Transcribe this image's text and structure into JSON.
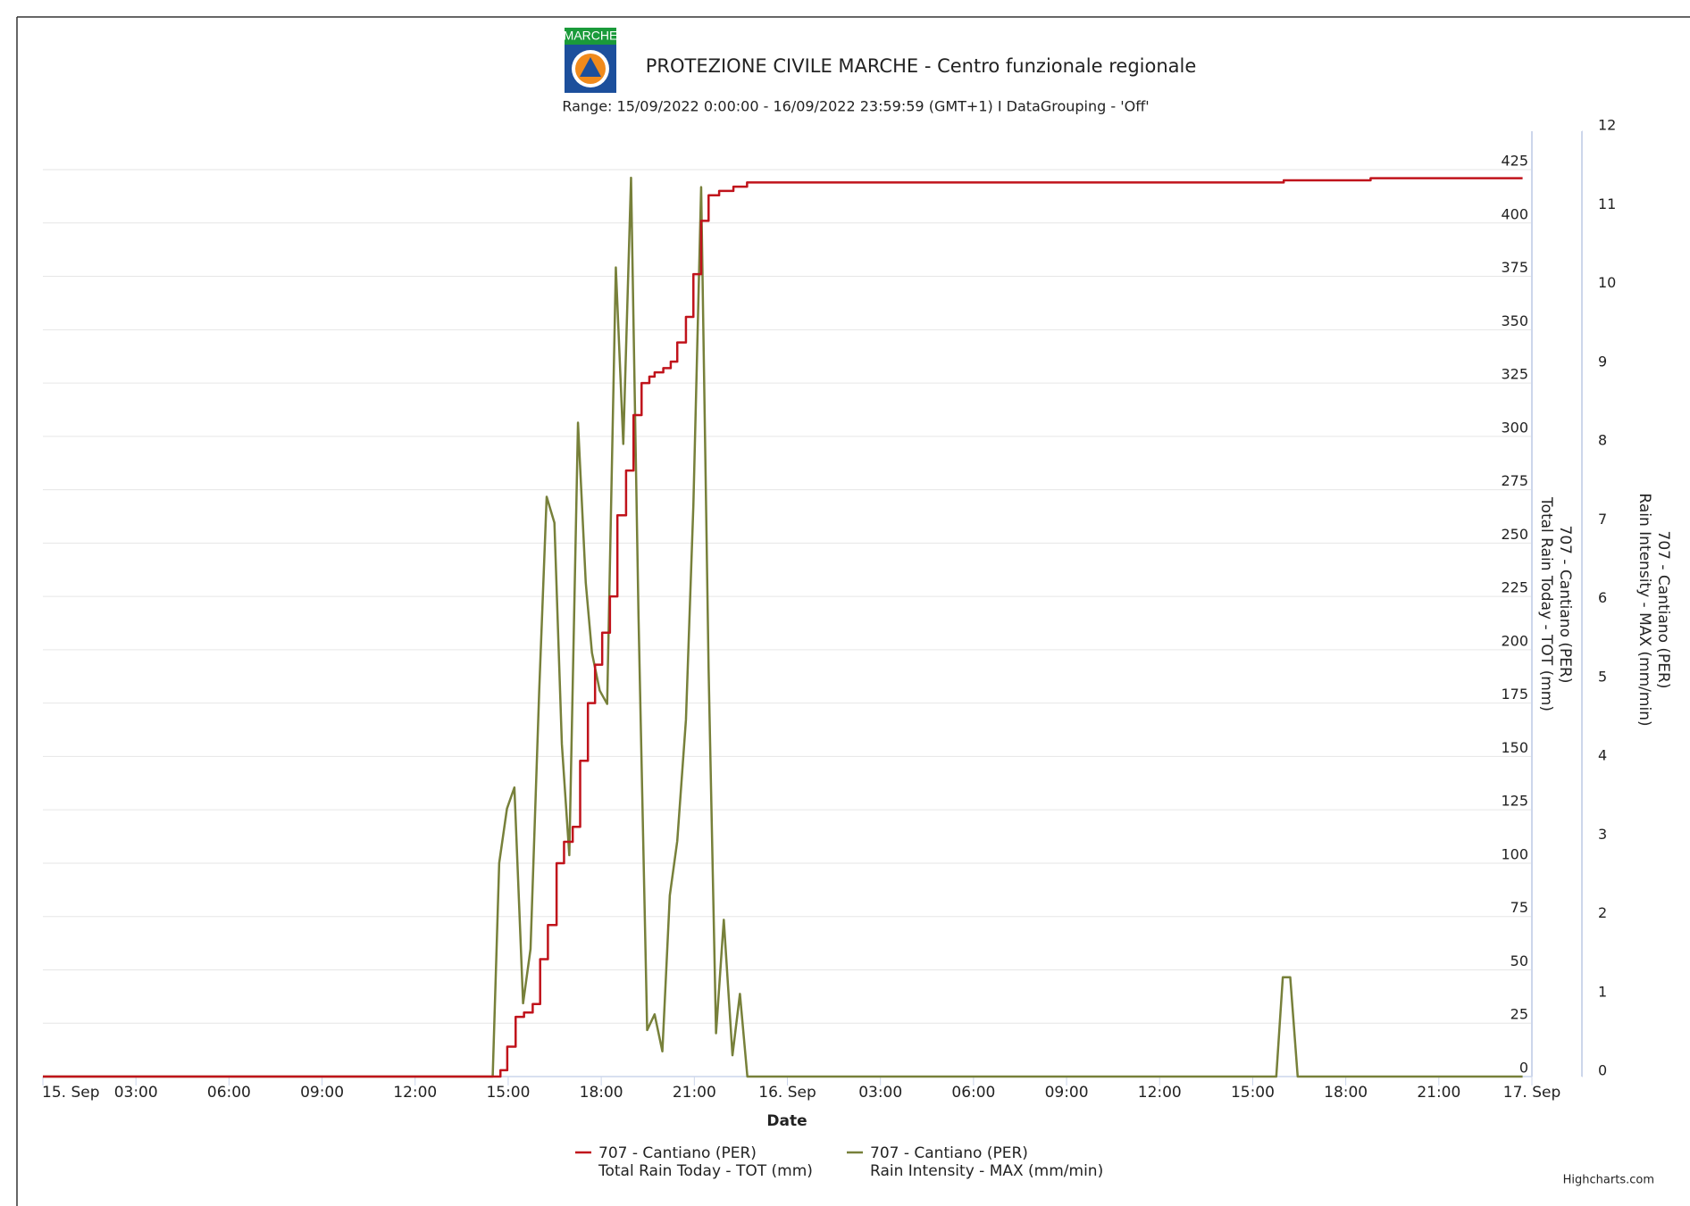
{
  "logo_text": "MARCHE",
  "chart_data": {
    "type": "line",
    "title": "PROTEZIONE CIVILE MARCHE - Centro funzionale regionale",
    "subtitle": "Range: 15/09/2022  0:00:00 - 16/09/2022  23:59:59  (GMT+1)  I  DataGrouping  - 'Off'",
    "xlabel": "Date",
    "ylabel": [
      "707 - Cantiano (PER)",
      "Total Rain Today - TOT (mm)"
    ],
    "y2label": [
      "707 - Cantiano (PER)",
      "Rain Intensity - MAX (mm/min)"
    ],
    "credits": "Highcharts.com",
    "xlim": [
      0,
      48
    ],
    "xticks": [
      {
        "value": 0,
        "label": "15. Sep"
      },
      {
        "value": 3,
        "label": "03:00"
      },
      {
        "value": 6,
        "label": "06:00"
      },
      {
        "value": 9,
        "label": "09:00"
      },
      {
        "value": 12,
        "label": "12:00"
      },
      {
        "value": 15,
        "label": "15:00"
      },
      {
        "value": 18,
        "label": "18:00"
      },
      {
        "value": 21,
        "label": "21:00"
      },
      {
        "value": 24,
        "label": "16. Sep"
      },
      {
        "value": 27,
        "label": "03:00"
      },
      {
        "value": 30,
        "label": "06:00"
      },
      {
        "value": 33,
        "label": "09:00"
      },
      {
        "value": 36,
        "label": "12:00"
      },
      {
        "value": 39,
        "label": "15:00"
      },
      {
        "value": 42,
        "label": "18:00"
      },
      {
        "value": 45,
        "label": "21:00"
      },
      {
        "value": 48,
        "label": "17. Sep"
      }
    ],
    "ylim": [
      0,
      443
    ],
    "yticks": [
      0,
      25,
      50,
      75,
      100,
      125,
      150,
      175,
      200,
      225,
      250,
      275,
      300,
      325,
      350,
      375,
      400,
      425
    ],
    "y2lim": [
      0,
      12
    ],
    "y2ticks": [
      0,
      1,
      2,
      3,
      4,
      5,
      6,
      7,
      8,
      9,
      10,
      11,
      12
    ],
    "grid": true,
    "series": [
      {
        "name": [
          "707 - Cantiano (PER)",
          "Total Rain Today - TOT (mm)"
        ],
        "color": "#c0131b",
        "step": true,
        "x": [
          0,
          14.6,
          14.75,
          14.97,
          15.24,
          15.51,
          15.79,
          16.03,
          16.28,
          16.56,
          16.8,
          17.08,
          17.32,
          17.57,
          17.8,
          18.03,
          18.28,
          18.52,
          18.8,
          19.04,
          19.3,
          19.55,
          19.72,
          20.0,
          20.24,
          20.45,
          20.73,
          20.97,
          21.22,
          21.46,
          21.8,
          22.26,
          22.7,
          40.0,
          42.8,
          47.7
        ],
        "values": [
          0,
          0,
          3,
          14,
          28,
          30,
          34,
          55,
          71,
          100,
          110,
          117,
          148,
          175,
          193,
          208,
          225,
          263,
          284,
          310,
          325,
          328,
          330,
          332,
          335,
          344,
          356,
          376,
          401,
          413,
          415,
          417,
          419,
          420,
          421,
          421
        ]
      },
      {
        "name": [
          "707 - Cantiano (PER)",
          "Rain Intensity - MAX (mm/min)"
        ],
        "color": "#77803a",
        "axis": "y2",
        "step": false,
        "x": [
          0,
          14.5,
          14.71,
          14.96,
          15.2,
          15.48,
          15.72,
          16.0,
          16.24,
          16.49,
          16.73,
          16.97,
          17.25,
          17.5,
          17.7,
          17.95,
          18.19,
          18.47,
          18.71,
          18.96,
          19.2,
          19.48,
          19.72,
          19.97,
          20.21,
          20.45,
          20.73,
          20.97,
          21.22,
          21.46,
          21.7,
          21.95,
          22.23,
          22.47,
          22.71,
          39.76,
          39.97,
          40.21,
          40.45,
          47.7
        ],
        "values": [
          0,
          0,
          2.71,
          3.4,
          3.67,
          0.93,
          1.62,
          4.9,
          7.36,
          7.03,
          4.22,
          2.81,
          8.3,
          6.27,
          5.38,
          4.9,
          4.73,
          10.27,
          8.03,
          11.41,
          5.86,
          0.59,
          0.79,
          0.32,
          2.3,
          2.99,
          4.53,
          7.26,
          11.29,
          5.18,
          0.55,
          1.99,
          0.27,
          1.05,
          0,
          0,
          1.26,
          1.26,
          0,
          0
        ]
      }
    ]
  }
}
